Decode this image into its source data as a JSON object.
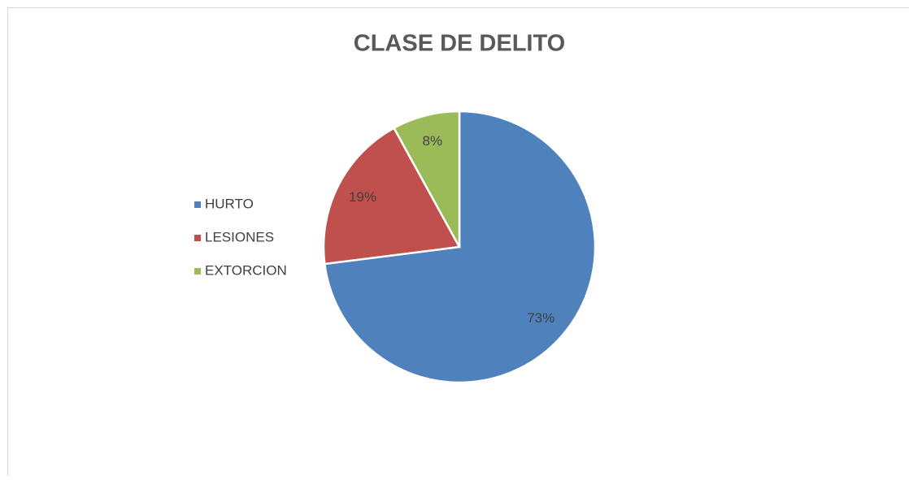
{
  "chart_data": {
    "type": "pie",
    "title": "CLASE DE DELITO",
    "categories": [
      "HURTO",
      "LESIONES",
      "EXTORCION"
    ],
    "values": [
      73,
      19,
      8
    ],
    "value_labels": [
      "73%",
      "19%",
      "8%"
    ],
    "colors": [
      "#4f81bd",
      "#c0504d",
      "#9bbb59"
    ],
    "legend": "left"
  }
}
